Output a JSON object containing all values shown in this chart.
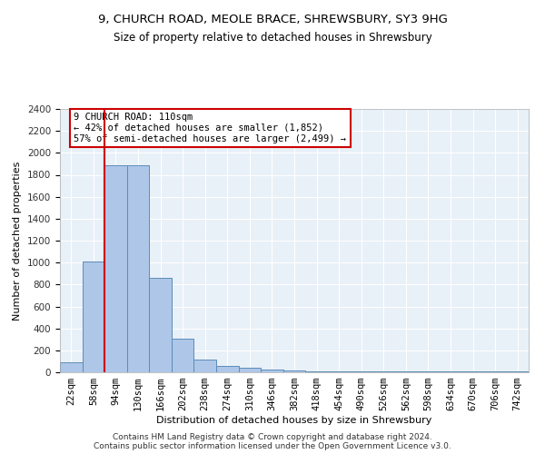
{
  "title1": "9, CHURCH ROAD, MEOLE BRACE, SHREWSBURY, SY3 9HG",
  "title2": "Size of property relative to detached houses in Shrewsbury",
  "xlabel": "Distribution of detached houses by size in Shrewsbury",
  "ylabel": "Number of detached properties",
  "bin_labels": [
    "22sqm",
    "58sqm",
    "94sqm",
    "130sqm",
    "166sqm",
    "202sqm",
    "238sqm",
    "274sqm",
    "310sqm",
    "346sqm",
    "382sqm",
    "418sqm",
    "454sqm",
    "490sqm",
    "526sqm",
    "562sqm",
    "598sqm",
    "634sqm",
    "670sqm",
    "706sqm",
    "742sqm"
  ],
  "bar_heights": [
    90,
    1010,
    1890,
    1890,
    860,
    310,
    120,
    60,
    45,
    25,
    15,
    10,
    5,
    5,
    5,
    5,
    5,
    5,
    5,
    5,
    5
  ],
  "bar_color": "#aec6e8",
  "bar_edgecolor": "#5b8db8",
  "bg_color": "#e8f0f8",
  "grid_color": "#ffffff",
  "red_line_x": 1.5,
  "annotation_text": "9 CHURCH ROAD: 110sqm\n← 42% of detached houses are smaller (1,852)\n57% of semi-detached houses are larger (2,499) →",
  "annotation_box_color": "#ffffff",
  "annotation_box_edge": "#cc0000",
  "red_line_color": "#cc0000",
  "ylim": [
    0,
    2400
  ],
  "yticks": [
    0,
    200,
    400,
    600,
    800,
    1000,
    1200,
    1400,
    1600,
    1800,
    2000,
    2200,
    2400
  ],
  "footer1": "Contains HM Land Registry data © Crown copyright and database right 2024.",
  "footer2": "Contains public sector information licensed under the Open Government Licence v3.0.",
  "title1_fontsize": 9.5,
  "title2_fontsize": 8.5,
  "xlabel_fontsize": 8,
  "ylabel_fontsize": 8,
  "tick_fontsize": 7.5,
  "annotation_fontsize": 7.5,
  "footer_fontsize": 6.5
}
